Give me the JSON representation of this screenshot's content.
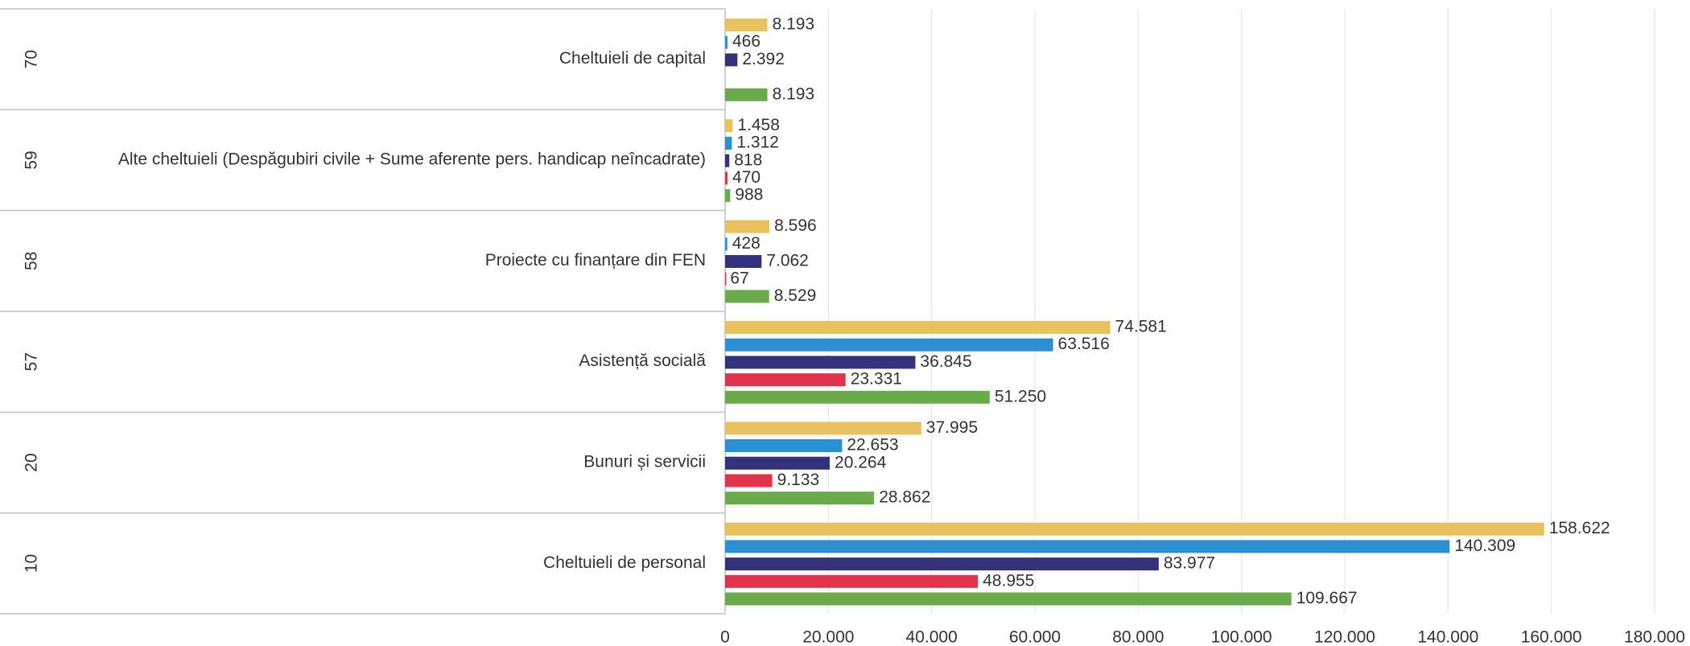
{
  "chart_data": {
    "type": "bar",
    "orientation": "horizontal",
    "codes": [
      "70",
      "59",
      "58",
      "57",
      "20",
      "10"
    ],
    "categories": [
      "Cheltuieli de capital",
      "Alte cheltuieli (Despăgubiri civile + Sume aferente pers. handicap neîncadrate)",
      "Proiecte cu finanțare din FEN",
      "Asistență socială",
      "Bunuri și servicii",
      "Cheltuieli de personal"
    ],
    "series": [
      {
        "color": "#e9c25e",
        "values": [
          8193,
          1458,
          8596,
          74581,
          37995,
          158622
        ],
        "value_labels": [
          "8.193",
          "1.458",
          "8.596",
          "74.581",
          "37.995",
          "158.622"
        ]
      },
      {
        "color": "#2b8fd4",
        "values": [
          466,
          1312,
          428,
          63516,
          22653,
          140309
        ],
        "value_labels": [
          "466",
          "1.312",
          "428",
          "63.516",
          "22.653",
          "140.309"
        ]
      },
      {
        "color": "#35327c",
        "values": [
          2392,
          818,
          7062,
          36845,
          20264,
          83977
        ],
        "value_labels": [
          "2.392",
          "818",
          "7.062",
          "36.845",
          "20.264",
          "83.977"
        ]
      },
      {
        "color": "#e3324c",
        "values": [
          null,
          470,
          67,
          23331,
          9133,
          48955
        ],
        "value_labels": [
          null,
          "470",
          "67",
          "23.331",
          "9.133",
          "48.955"
        ]
      },
      {
        "color": "#6aac4c",
        "values": [
          8193,
          988,
          8529,
          51250,
          28862,
          109667
        ],
        "value_labels": [
          "8.193",
          "988",
          "8.529",
          "51.250",
          "28.862",
          "109.667"
        ]
      }
    ],
    "xlim": [
      0,
      180000
    ],
    "xticks": [
      0,
      {
        "value": 20000,
        "label": "20.000"
      },
      {
        "value": 40000,
        "label": "40.000"
      },
      {
        "value": 60000,
        "label": "60.000"
      },
      {
        "value": 80000,
        "label": "80.000"
      },
      {
        "value": 100000,
        "label": "100.000"
      },
      {
        "value": 120000,
        "label": "120.000"
      },
      {
        "value": 140000,
        "label": "140.000"
      },
      {
        "value": 160000,
        "label": "160.000"
      },
      {
        "value": 180000,
        "label": "180.000"
      }
    ],
    "grid": true
  }
}
